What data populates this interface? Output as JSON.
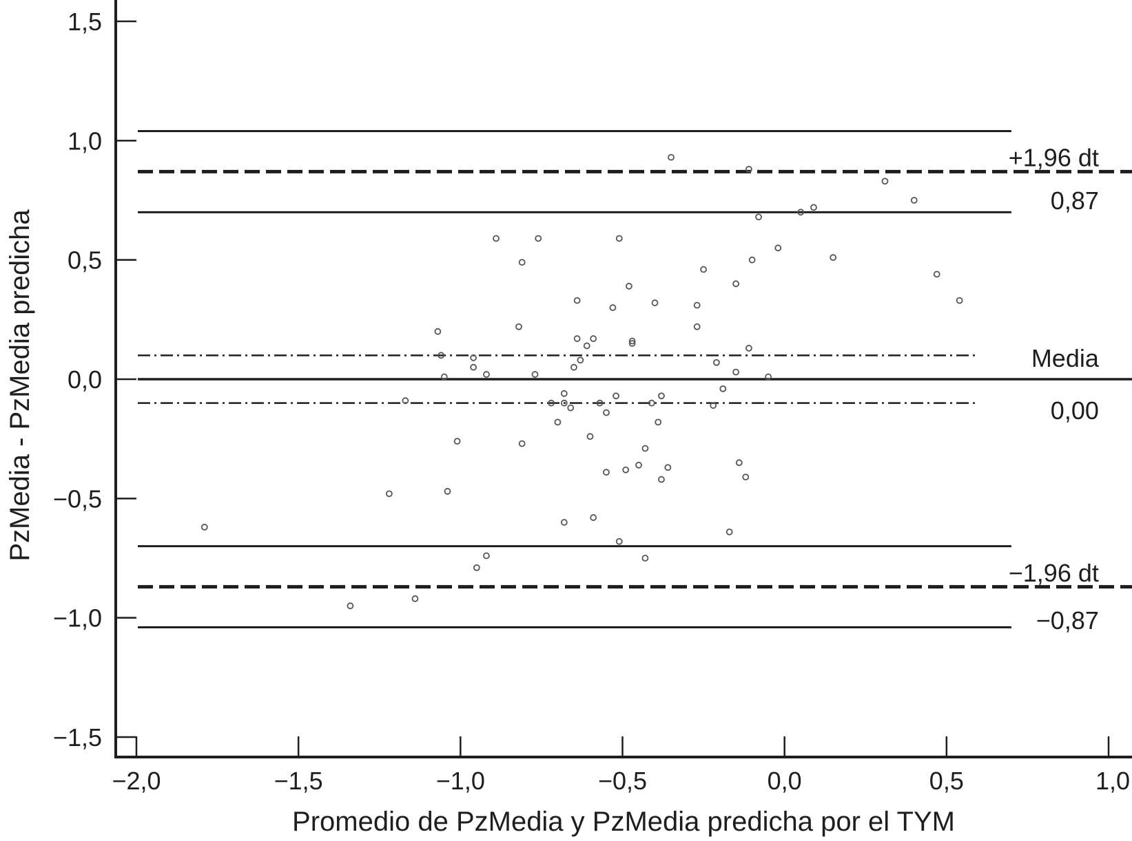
{
  "chart_data": {
    "type": "scatter",
    "title": "",
    "xlabel": "Promedio de PzMedia y PzMedia predicha por el TYM",
    "ylabel": "PzMedia - PzMedia predicha",
    "xlim": [
      -2.0,
      1.0
    ],
    "ylim": [
      -1.5,
      1.5
    ],
    "x_ticks": [
      -2.0,
      -1.5,
      -1.0,
      -0.5,
      0.0,
      0.5,
      1.0
    ],
    "x_tick_labels": [
      "−2,0",
      "−1,5",
      "−1,0",
      "−0,5",
      "0,0",
      "0,5",
      "1,0"
    ],
    "y_ticks": [
      1.5,
      1.0,
      0.5,
      0.0,
      -0.5,
      -1.0,
      -1.5
    ],
    "y_tick_labels": [
      "1,5",
      "1,0",
      "0,5",
      "0,0",
      "−0,5",
      "−1,0",
      "−1,5"
    ],
    "grid": false,
    "colors": {
      "ink": "#1e1e1e",
      "marker": "#555555",
      "background": "#ffffff"
    },
    "reference_lines": [
      {
        "id": "mean",
        "y": 0.0,
        "style": "solid",
        "x_range": [
          -2.0,
          1.0
        ]
      },
      {
        "id": "mean-ci-upper",
        "y": 0.1,
        "style": "dashdot",
        "x_range": [
          -2.0,
          0.6
        ]
      },
      {
        "id": "mean-ci-lower",
        "y": -0.1,
        "style": "dashdot",
        "x_range": [
          -2.0,
          0.6
        ]
      },
      {
        "id": "upper-loa",
        "y": 0.87,
        "style": "dashed",
        "x_range": [
          -2.0,
          1.0
        ]
      },
      {
        "id": "upper-loa-ci-upper",
        "y": 1.04,
        "style": "solid",
        "x_range": [
          -2.0,
          0.7
        ]
      },
      {
        "id": "upper-loa-ci-lower",
        "y": 0.7,
        "style": "solid",
        "x_range": [
          -2.0,
          0.7
        ]
      },
      {
        "id": "lower-loa",
        "y": -0.87,
        "style": "dashed",
        "x_range": [
          -2.0,
          1.0
        ]
      },
      {
        "id": "lower-loa-ci-upper",
        "y": -0.7,
        "style": "solid",
        "x_range": [
          -2.0,
          0.7
        ]
      },
      {
        "id": "lower-loa-ci-lower",
        "y": -1.04,
        "style": "solid",
        "x_range": [
          -2.0,
          0.7
        ]
      }
    ],
    "annotations": [
      {
        "text": "+1,96 dt",
        "x": 0.97,
        "y": 0.93
      },
      {
        "text": "0,87",
        "x": 0.97,
        "y": 0.75
      },
      {
        "text": "Media",
        "x": 0.97,
        "y": 0.09
      },
      {
        "text": "0,00",
        "x": 0.97,
        "y": -0.13
      },
      {
        "text": "−1,96 dt",
        "x": 0.97,
        "y": -0.81
      },
      {
        "text": "−0,87",
        "x": 0.97,
        "y": -1.01
      }
    ],
    "series": [
      {
        "points": [
          [
            -1.79,
            -0.62
          ],
          [
            -1.34,
            -0.95
          ],
          [
            -1.22,
            -0.48
          ],
          [
            -1.17,
            -0.09
          ],
          [
            -1.14,
            -0.92
          ],
          [
            -1.07,
            0.2
          ],
          [
            -1.06,
            0.1
          ],
          [
            -1.05,
            0.01
          ],
          [
            -1.04,
            -0.47
          ],
          [
            -1.01,
            -0.26
          ],
          [
            -0.96,
            0.09
          ],
          [
            -0.96,
            0.05
          ],
          [
            -0.95,
            -0.79
          ],
          [
            -0.92,
            0.02
          ],
          [
            -0.92,
            -0.74
          ],
          [
            -0.89,
            0.59
          ],
          [
            -0.81,
            0.49
          ],
          [
            -0.82,
            0.22
          ],
          [
            -0.81,
            -0.27
          ],
          [
            -0.76,
            0.59
          ],
          [
            -0.77,
            0.02
          ],
          [
            -0.72,
            -0.1
          ],
          [
            -0.7,
            -0.18
          ],
          [
            -0.68,
            -0.06
          ],
          [
            -0.68,
            -0.1
          ],
          [
            -0.66,
            -0.12
          ],
          [
            -0.68,
            -0.6
          ],
          [
            -0.65,
            0.05
          ],
          [
            -0.64,
            0.17
          ],
          [
            -0.64,
            0.33
          ],
          [
            -0.63,
            0.08
          ],
          [
            -0.61,
            0.14
          ],
          [
            -0.6,
            -0.24
          ],
          [
            -0.59,
            0.17
          ],
          [
            -0.59,
            -0.58
          ],
          [
            -0.57,
            -0.1
          ],
          [
            -0.55,
            -0.14
          ],
          [
            -0.55,
            -0.39
          ],
          [
            -0.53,
            0.3
          ],
          [
            -0.52,
            -0.07
          ],
          [
            -0.51,
            -0.68
          ],
          [
            -0.51,
            0.59
          ],
          [
            -0.49,
            -0.38
          ],
          [
            -0.48,
            0.39
          ],
          [
            -0.47,
            0.15
          ],
          [
            -0.47,
            0.16
          ],
          [
            -0.45,
            -0.36
          ],
          [
            -0.43,
            -0.29
          ],
          [
            -0.43,
            -0.75
          ],
          [
            -0.41,
            -0.1
          ],
          [
            -0.4,
            0.32
          ],
          [
            -0.39,
            -0.18
          ],
          [
            -0.38,
            -0.07
          ],
          [
            -0.38,
            -0.42
          ],
          [
            -0.36,
            -0.37
          ],
          [
            -0.35,
            0.93
          ],
          [
            -0.27,
            0.31
          ],
          [
            -0.27,
            0.22
          ],
          [
            -0.25,
            0.46
          ],
          [
            -0.22,
            -0.11
          ],
          [
            -0.21,
            0.07
          ],
          [
            -0.19,
            -0.04
          ],
          [
            -0.17,
            -0.64
          ],
          [
            -0.15,
            0.03
          ],
          [
            -0.15,
            0.4
          ],
          [
            -0.14,
            -0.35
          ],
          [
            -0.12,
            -0.41
          ],
          [
            -0.11,
            0.88
          ],
          [
            -0.11,
            0.13
          ],
          [
            -0.1,
            0.5
          ],
          [
            -0.08,
            0.68
          ],
          [
            -0.05,
            0.01
          ],
          [
            -0.02,
            0.55
          ],
          [
            0.05,
            0.7
          ],
          [
            0.09,
            0.72
          ],
          [
            0.15,
            0.51
          ],
          [
            0.31,
            0.83
          ],
          [
            0.4,
            0.75
          ],
          [
            0.47,
            0.44
          ],
          [
            0.54,
            0.33
          ]
        ]
      }
    ]
  }
}
